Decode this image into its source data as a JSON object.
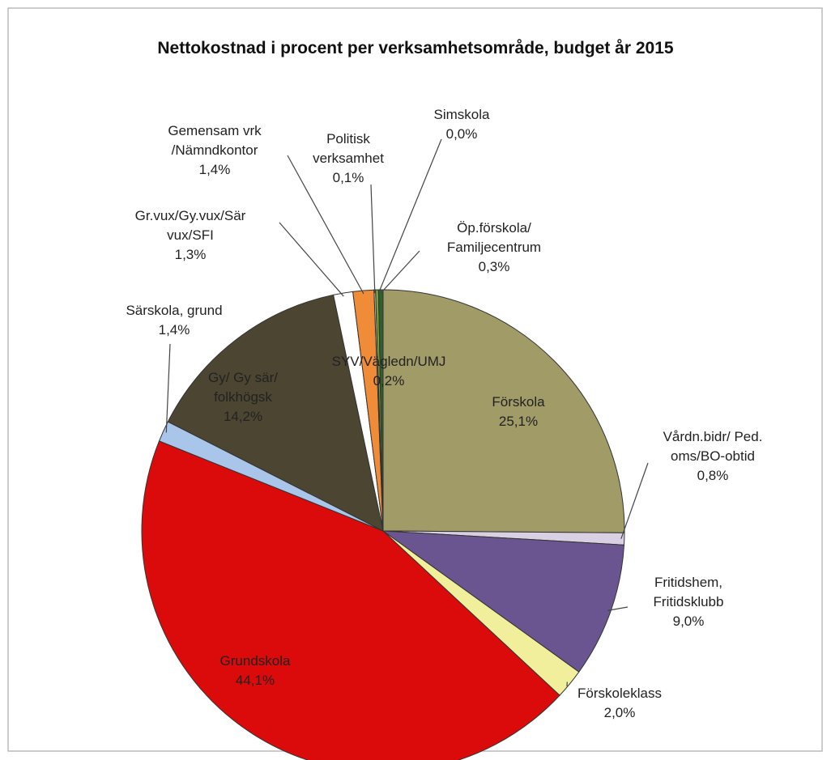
{
  "chart_data": {
    "type": "pie",
    "title": "Nettokostnad i procent per verksamhetsområde, budget år 2015",
    "categories": [
      "Förskola",
      "Vårdn.bidr/ Ped.\noms/BO-obtid",
      "Fritidshem,\nFritidsklubb",
      "Förskoleklass",
      "Grundskola",
      "Särskola, grund",
      "Gy/ Gy sär/\nfolkhögsk",
      "Gr.vux/Gy.vux/Sär\nvux/SFI",
      "Gemensam vrk\n/Nämndkontor",
      "Politisk\nverksamhet",
      "SYV/Vägledn/UMJ",
      "Simskola",
      "Öp.förskola/\nFamiljecentrum"
    ],
    "values": [
      25.1,
      0.8,
      9.0,
      2.0,
      44.1,
      1.4,
      14.2,
      1.3,
      1.4,
      0.1,
      0.2,
      0.0,
      0.3
    ],
    "value_labels": [
      "25,1%",
      "0,8%",
      "9,0%",
      "2,0%",
      "44,1%",
      "1,4%",
      "14,2%",
      "1,3%",
      "1,4%",
      "0,1%",
      "0,2%",
      "0,0%",
      "0,3%"
    ],
    "colors": [
      "#a19b68",
      "#d9d0e3",
      "#6a5590",
      "#f1ef9c",
      "#dc0b0b",
      "#a9c5e9",
      "#4b4531",
      "#ffffff",
      "#f08c38",
      "#e2e2d2",
      "#76a436",
      "#c8c8c8",
      "#2f5f2f"
    ]
  }
}
